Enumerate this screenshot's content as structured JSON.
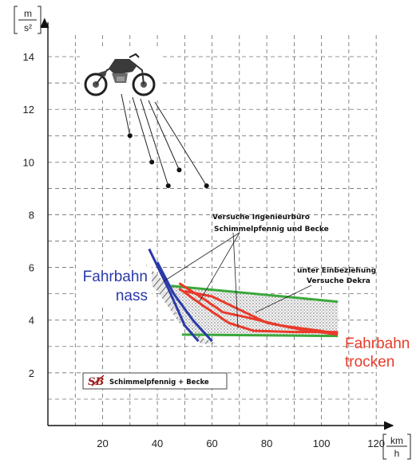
{
  "chart_data": {
    "type": "area",
    "title": "",
    "xlabel": "",
    "ylabel": "",
    "x_unit": {
      "top": "km",
      "bottom": "h"
    },
    "y_unit": {
      "top": "m",
      "bottom": "s²"
    },
    "xlim": [
      0,
      122
    ],
    "ylim": [
      0,
      15
    ],
    "x_ticks": [
      20,
      40,
      60,
      80,
      100,
      120
    ],
    "y_ticks": [
      2,
      4,
      6,
      8,
      10,
      12,
      14
    ],
    "grid": true,
    "scatter_points": [
      {
        "x": 30,
        "y": 11.0
      },
      {
        "x": 38,
        "y": 10.0
      },
      {
        "x": 44,
        "y": 9.1
      },
      {
        "x": 48,
        "y": 9.7
      },
      {
        "x": 58,
        "y": 9.1
      }
    ],
    "series": [
      {
        "name": "Fahrbahn nass",
        "color": "#2a3aa8",
        "lines": [
          [
            [
              37,
              6.7
            ],
            [
              44,
              5.2
            ],
            [
              50,
              3.8
            ],
            [
              55,
              3.2
            ]
          ],
          [
            [
              40,
              6.2
            ],
            [
              46,
              5.0
            ],
            [
              53,
              4.0
            ],
            [
              60,
              3.2
            ]
          ]
        ]
      },
      {
        "name": "Fahrbahn trocken",
        "color": "#e83b2a",
        "lines": [
          [
            [
              48,
              5.4
            ],
            [
              57,
              4.8
            ],
            [
              64,
              4.3
            ],
            [
              73,
              4.1
            ],
            [
              85,
              3.8
            ],
            [
              106,
              3.5
            ]
          ],
          [
            [
              48,
              5.2
            ],
            [
              56,
              4.6
            ],
            [
              66,
              3.9
            ],
            [
              75,
              3.6
            ],
            [
              90,
              3.55
            ],
            [
              106,
              3.55
            ]
          ],
          [
            [
              50,
              5.1
            ],
            [
              60,
              4.9
            ],
            [
              70,
              4.4
            ],
            [
              80,
              3.9
            ],
            [
              92,
              3.65
            ],
            [
              106,
              3.45
            ]
          ]
        ]
      }
    ],
    "envelope": {
      "color": "#3aa83a",
      "upper": [
        [
          45,
          5.3
        ],
        [
          106,
          4.7
        ]
      ],
      "lower": [
        [
          49,
          3.45
        ],
        [
          106,
          3.4
        ]
      ]
    },
    "annotations": [
      {
        "lines": [
          "Versuche Ingenieurbüro",
          "Schimmelpfennig und Becke"
        ]
      },
      {
        "lines": [
          "unter Einbeziehung",
          "Versuche Dekra"
        ]
      }
    ],
    "logo_text": "Schimmelpfennig + Becke",
    "logo_mark": "SB"
  }
}
